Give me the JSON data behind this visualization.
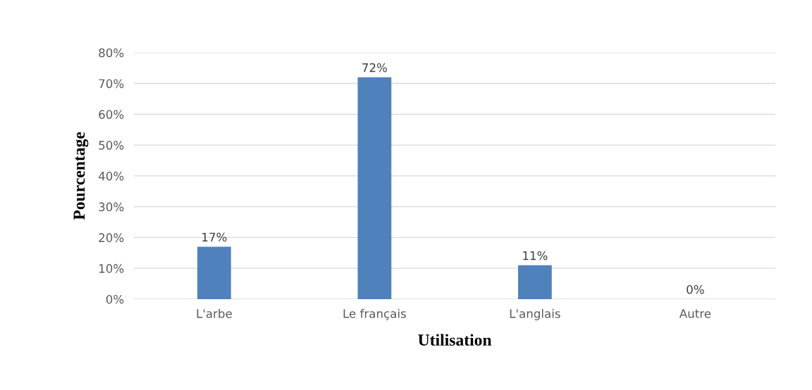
{
  "chart_data": {
    "type": "bar",
    "xlabel": "Utilisation",
    "ylabel": "Pourcentage",
    "categories": [
      "L'arbe",
      "Le français",
      "L'anglais",
      "Autre"
    ],
    "values": [
      17,
      72,
      11,
      0
    ],
    "color": "#4f81bd",
    "value_labels": [
      "17%",
      "72%",
      "11%",
      "0%"
    ],
    "ylim": [
      0,
      80
    ],
    "yticks": [
      {
        "value": 0,
        "label": "0%"
      },
      {
        "value": 10,
        "label": "10%"
      },
      {
        "value": 20,
        "label": "20%"
      },
      {
        "value": 30,
        "label": "30%"
      },
      {
        "value": 40,
        "label": "40%"
      },
      {
        "value": 50,
        "label": "50%"
      },
      {
        "value": 60,
        "label": "60%"
      },
      {
        "value": 70,
        "label": "70%"
      },
      {
        "value": 80,
        "label": "80%"
      }
    ],
    "grid": "y",
    "legend": false
  }
}
